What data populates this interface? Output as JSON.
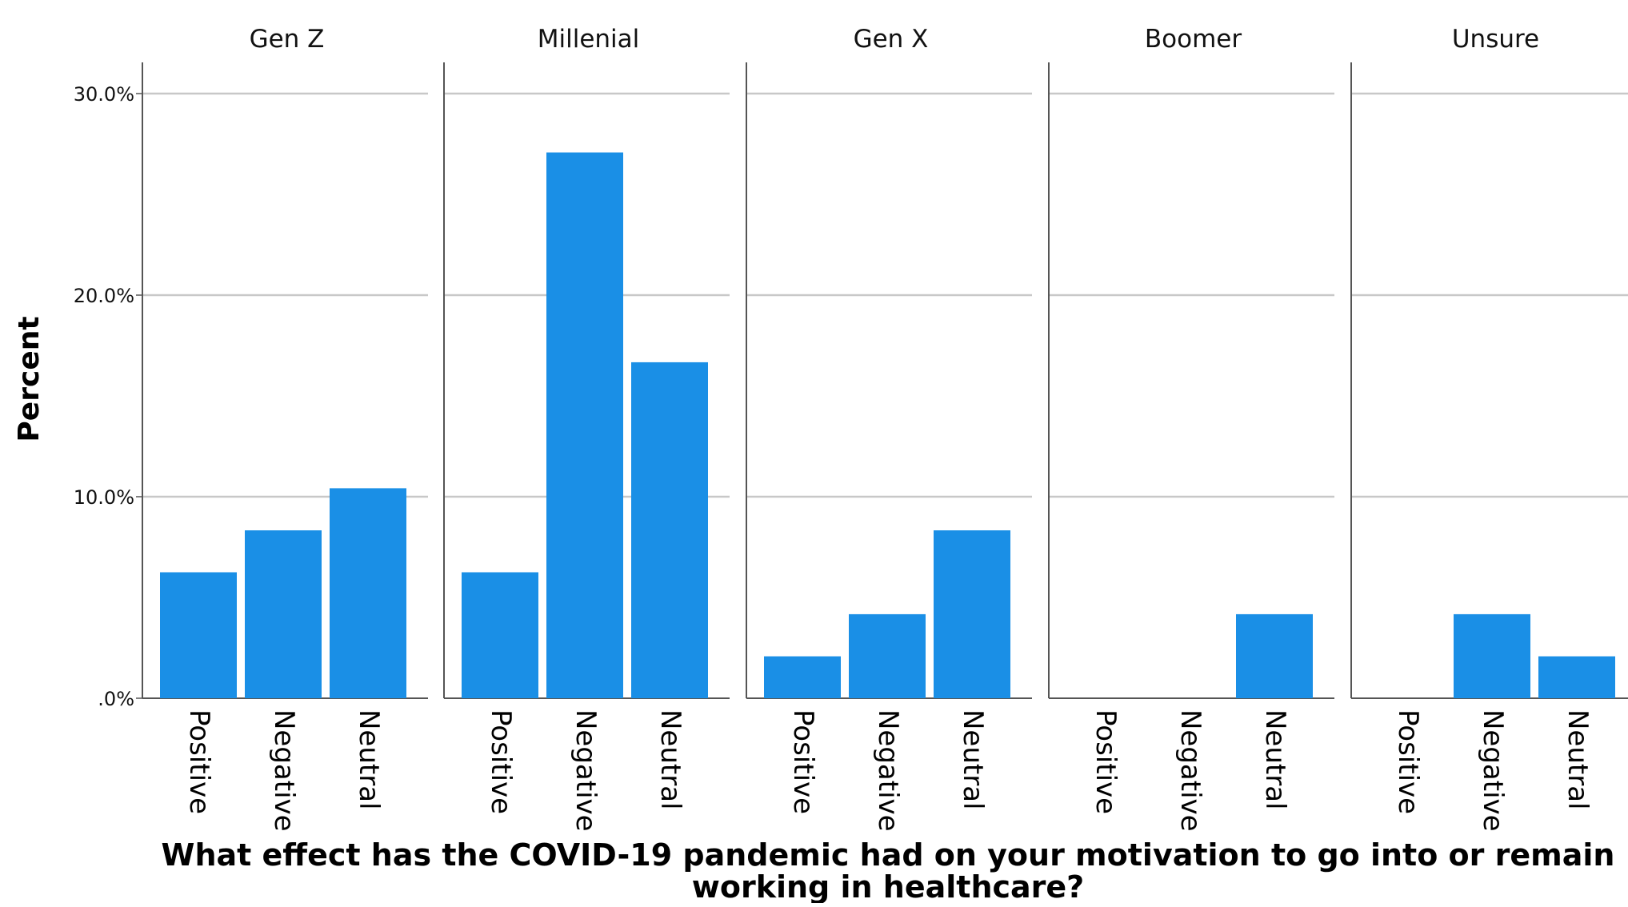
{
  "chart_data": {
    "type": "bar",
    "ylabel": "Percent",
    "xlabel_lines": [
      "What effect has the COVID-19 pandemic had on your motivation to go into or remain",
      "working in healthcare?"
    ],
    "ylim": [
      0,
      30
    ],
    "yticks": [
      0,
      10,
      20,
      30
    ],
    "ytick_labels": [
      ".0%",
      "10.0%",
      "20.0%",
      "30.0%"
    ],
    "grid": true,
    "bar_color": "#1a8fe6",
    "categories": [
      "Positive",
      "Negative",
      "Neutral"
    ],
    "panels": [
      {
        "name": "Gen Z",
        "values": [
          6.25,
          8.33,
          10.42
        ]
      },
      {
        "name": "Millenial",
        "values": [
          6.25,
          27.08,
          16.67
        ]
      },
      {
        "name": "Gen X",
        "values": [
          2.08,
          4.17,
          8.33
        ]
      },
      {
        "name": "Boomer",
        "values": [
          0,
          0,
          4.17
        ]
      },
      {
        "name": "Unsure",
        "values": [
          0,
          4.17,
          2.08
        ]
      }
    ]
  }
}
